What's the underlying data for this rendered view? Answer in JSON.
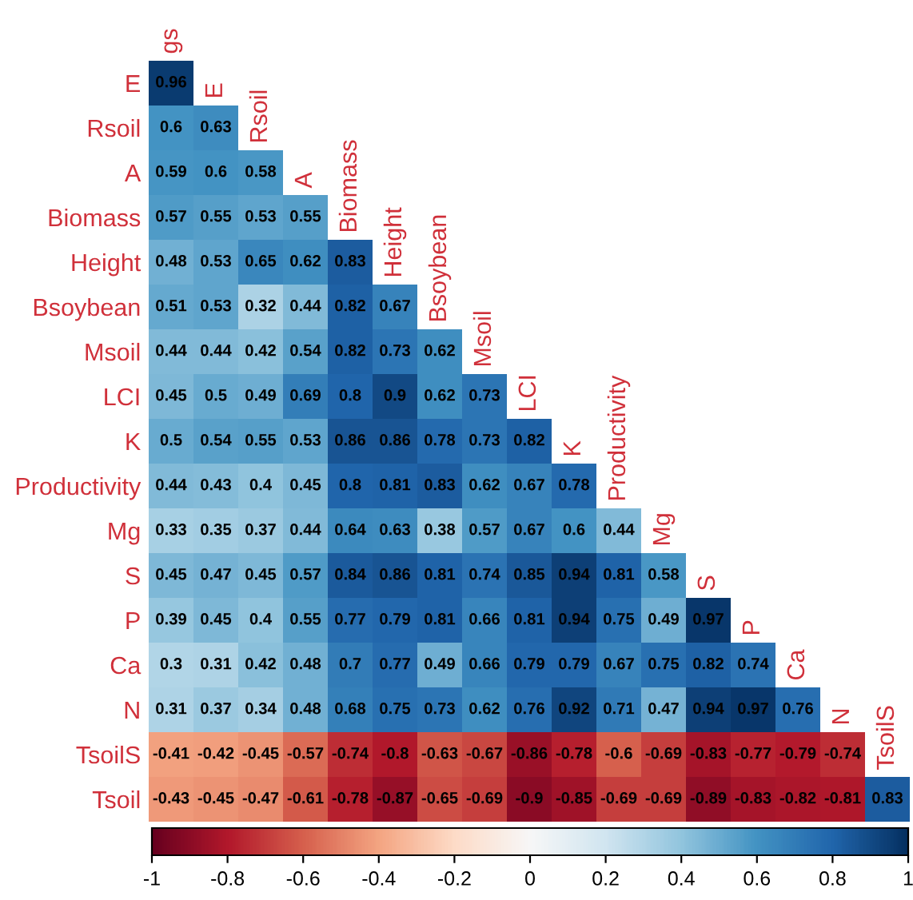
{
  "chart_data": {
    "type": "heatmap",
    "categories": [
      "gs",
      "E",
      "Rsoil",
      "A",
      "Biomass",
      "Height",
      "Bsoybean",
      "Msoil",
      "LCI",
      "K",
      "Productivity",
      "Mg",
      "S",
      "P",
      "Ca",
      "N",
      "TsoilS"
    ],
    "y_categories": [
      "E",
      "Rsoil",
      "A",
      "Biomass",
      "Height",
      "Bsoybean",
      "Msoil",
      "LCI",
      "K",
      "Productivity",
      "Mg",
      "S",
      "P",
      "Ca",
      "N",
      "TsoilS",
      "Tsoil"
    ],
    "cells": [
      [
        0.96,
        null,
        null,
        null,
        null,
        null,
        null,
        null,
        null,
        null,
        null,
        null,
        null,
        null,
        null,
        null,
        null
      ],
      [
        0.6,
        0.63,
        null,
        null,
        null,
        null,
        null,
        null,
        null,
        null,
        null,
        null,
        null,
        null,
        null,
        null,
        null
      ],
      [
        0.59,
        0.6,
        0.58,
        null,
        null,
        null,
        null,
        null,
        null,
        null,
        null,
        null,
        null,
        null,
        null,
        null,
        null
      ],
      [
        0.57,
        0.55,
        0.53,
        0.55,
        null,
        null,
        null,
        null,
        null,
        null,
        null,
        null,
        null,
        null,
        null,
        null,
        null
      ],
      [
        0.48,
        0.53,
        0.65,
        0.62,
        0.83,
        null,
        null,
        null,
        null,
        null,
        null,
        null,
        null,
        null,
        null,
        null,
        null
      ],
      [
        0.51,
        0.53,
        0.32,
        0.44,
        0.82,
        0.67,
        null,
        null,
        null,
        null,
        null,
        null,
        null,
        null,
        null,
        null,
        null
      ],
      [
        0.44,
        0.44,
        0.42,
        0.54,
        0.82,
        0.73,
        0.62,
        null,
        null,
        null,
        null,
        null,
        null,
        null,
        null,
        null,
        null
      ],
      [
        0.45,
        0.5,
        0.49,
        0.69,
        0.8,
        0.9,
        0.62,
        0.73,
        null,
        null,
        null,
        null,
        null,
        null,
        null,
        null,
        null
      ],
      [
        0.5,
        0.54,
        0.55,
        0.53,
        0.86,
        0.86,
        0.78,
        0.73,
        0.82,
        null,
        null,
        null,
        null,
        null,
        null,
        null,
        null
      ],
      [
        0.44,
        0.43,
        0.4,
        0.45,
        0.8,
        0.81,
        0.83,
        0.62,
        0.67,
        0.78,
        null,
        null,
        null,
        null,
        null,
        null,
        null
      ],
      [
        0.33,
        0.35,
        0.37,
        0.44,
        0.64,
        0.63,
        0.38,
        0.57,
        0.67,
        0.6,
        0.44,
        null,
        null,
        null,
        null,
        null,
        null
      ],
      [
        0.45,
        0.47,
        0.45,
        0.57,
        0.84,
        0.86,
        0.81,
        0.74,
        0.85,
        0.94,
        0.81,
        0.58,
        null,
        null,
        null,
        null,
        null
      ],
      [
        0.39,
        0.45,
        0.4,
        0.55,
        0.77,
        0.79,
        0.81,
        0.66,
        0.81,
        0.94,
        0.75,
        0.49,
        0.97,
        null,
        null,
        null,
        null
      ],
      [
        0.3,
        0.31,
        0.42,
        0.48,
        0.7,
        0.77,
        0.49,
        0.66,
        0.79,
        0.79,
        0.67,
        0.75,
        0.82,
        0.74,
        null,
        null,
        null
      ],
      [
        0.31,
        0.37,
        0.34,
        0.48,
        0.68,
        0.75,
        0.73,
        0.62,
        0.76,
        0.92,
        0.71,
        0.47,
        0.94,
        0.97,
        0.76,
        null,
        null
      ],
      [
        -0.41,
        -0.42,
        -0.45,
        -0.57,
        -0.74,
        -0.8,
        -0.63,
        -0.67,
        -0.86,
        -0.78,
        -0.6,
        -0.69,
        -0.83,
        -0.77,
        -0.79,
        -0.74,
        null
      ],
      [
        -0.43,
        -0.45,
        -0.47,
        -0.61,
        -0.78,
        -0.87,
        -0.65,
        -0.69,
        -0.9,
        -0.85,
        -0.69,
        -0.69,
        -0.89,
        -0.83,
        -0.82,
        -0.81,
        0.83
      ]
    ],
    "data_labels": true,
    "clim": [
      -1,
      1
    ],
    "cticks": [
      -1,
      -0.8,
      -0.6,
      -0.4,
      -0.2,
      0,
      0.2,
      0.4,
      0.6,
      0.8,
      1
    ]
  }
}
